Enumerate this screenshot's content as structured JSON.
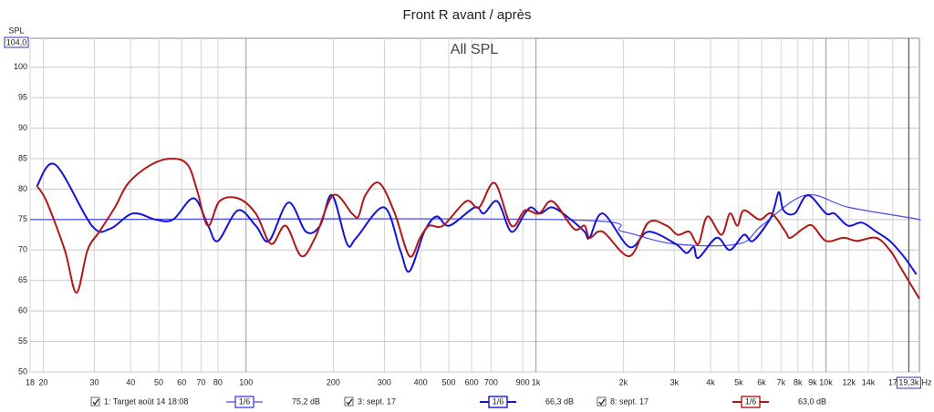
{
  "chart_data": {
    "type": "line",
    "title": "Front R avant / après",
    "annotation": "All SPL",
    "ylabel": "SPL",
    "xlabel": "Hz",
    "log_x": true,
    "grid": true,
    "xlim": [
      18,
      21000
    ],
    "ylim": [
      50,
      104
    ],
    "yticks": [
      50,
      55,
      60,
      65,
      70,
      75,
      80,
      85,
      90,
      95,
      100,
      {
        "value": 104,
        "label": "104,0"
      }
    ],
    "xticks": [
      18,
      20,
      30,
      40,
      50,
      60,
      70,
      80,
      100,
      200,
      300,
      400,
      500,
      600,
      700,
      900,
      {
        "value": 1000,
        "label": "1k"
      },
      {
        "value": 2000,
        "label": "2k"
      },
      {
        "value": 3000,
        "label": "3k"
      },
      {
        "value": 4000,
        "label": "4k"
      },
      {
        "value": 5000,
        "label": "5k"
      },
      {
        "value": 6000,
        "label": "6k"
      },
      {
        "value": 7000,
        "label": "7k"
      },
      {
        "value": 8000,
        "label": "8k"
      },
      {
        "value": 9000,
        "label": "9k"
      },
      {
        "value": 10000,
        "label": "10k"
      },
      {
        "value": 12000,
        "label": "12k",
        "color": "#999999"
      },
      {
        "value": 14000,
        "label": "14k",
        "color": "#999999"
      },
      {
        "value": 17000,
        "label": "17",
        "color": "#999999"
      }
    ],
    "cursor": {
      "value": 19300,
      "label": "19,3k"
    },
    "series": [
      {
        "name": "1: Target août 14 18:08",
        "color": "#4a4af0",
        "width": 1.2,
        "smoothing": "1/6",
        "readout": "75,2 dB",
        "x": [
          18,
          1200,
          2000,
          3000,
          5000,
          6000,
          8500,
          12000,
          20000,
          21000
        ],
        "values": [
          75,
          75,
          73,
          71,
          71,
          74,
          79,
          77,
          75.2,
          75
        ]
      },
      {
        "name": "3: sept. 17",
        "color": "#1414d8",
        "width": 2,
        "smoothing": "1/6",
        "readout": "66,3 dB",
        "x": [
          19,
          22,
          29.4,
          34,
          40.7,
          48.8,
          56,
          66,
          74,
          80,
          93.7,
          108,
          120,
          140,
          161,
          180,
          198,
          223,
          240,
          299,
          340,
          366,
          412,
          454,
          502,
          615,
          661,
          736,
          822,
          915,
          964,
          1036,
          1140,
          1320,
          1470,
          1530,
          1700,
          2100,
          2440,
          3030,
          3300,
          3500,
          3630,
          4200,
          4660,
          5210,
          5600,
          6400,
          6640,
          6890,
          7140,
          7800,
          8660,
          10000,
          10700,
          11900,
          13300,
          14900,
          16600,
          18500,
          20500
        ],
        "values": [
          80.5,
          84,
          74,
          73.5,
          76,
          75,
          75,
          78.5,
          74,
          71.5,
          76.5,
          74,
          71.5,
          77.8,
          73,
          74,
          79,
          71,
          72,
          77,
          70,
          66.5,
          73,
          75.5,
          74,
          77,
          76,
          78,
          73,
          76,
          77,
          76,
          77,
          75,
          73,
          72,
          76,
          70.5,
          73,
          71,
          69.5,
          70.5,
          68.7,
          72,
          70,
          72.5,
          71.5,
          75,
          77,
          79.5,
          76.5,
          76,
          79,
          76,
          76,
          74,
          74.5,
          73,
          71.5,
          69,
          66
        ]
      },
      {
        "name": "8: sept. 17",
        "color": "#b01818",
        "width": 2,
        "smoothing": "1/6",
        "readout": "63,0 dB",
        "x": [
          19,
          20.5,
          23.7,
          26,
          28.4,
          31.2,
          35.3,
          39.3,
          47,
          55.6,
          62.9,
          67.6,
          73.8,
          81,
          93.7,
          108,
          122,
          137,
          155,
          173,
          200,
          232,
          244,
          258,
          288,
          326,
          366,
          398,
          428,
          478,
          574,
          636,
          720,
          822,
          915,
          1025,
          1140,
          1350,
          1470,
          1530,
          1700,
          2100,
          2440,
          2820,
          3080,
          3380,
          3630,
          3900,
          4360,
          4660,
          4950,
          5210,
          5900,
          6490,
          7250,
          7530,
          8340,
          8980,
          10000,
          11500,
          12800,
          14900,
          16600,
          17900,
          19800,
          21000
        ],
        "values": [
          80.5,
          78,
          70,
          63,
          70,
          73,
          77,
          81,
          84,
          85,
          84,
          80,
          74,
          78,
          78.5,
          76,
          71,
          74,
          69,
          72,
          79,
          76,
          75.5,
          79,
          81,
          76,
          69,
          72,
          74,
          74,
          78,
          77,
          81,
          74,
          76.5,
          76,
          78,
          73.5,
          74,
          72,
          73,
          69,
          74.5,
          74,
          72.5,
          73,
          71,
          75.5,
          72.5,
          76,
          74,
          76.5,
          75,
          76,
          73,
          72,
          73.5,
          74,
          71.5,
          72,
          71.5,
          72,
          70,
          67.5,
          64,
          62
        ]
      }
    ]
  }
}
